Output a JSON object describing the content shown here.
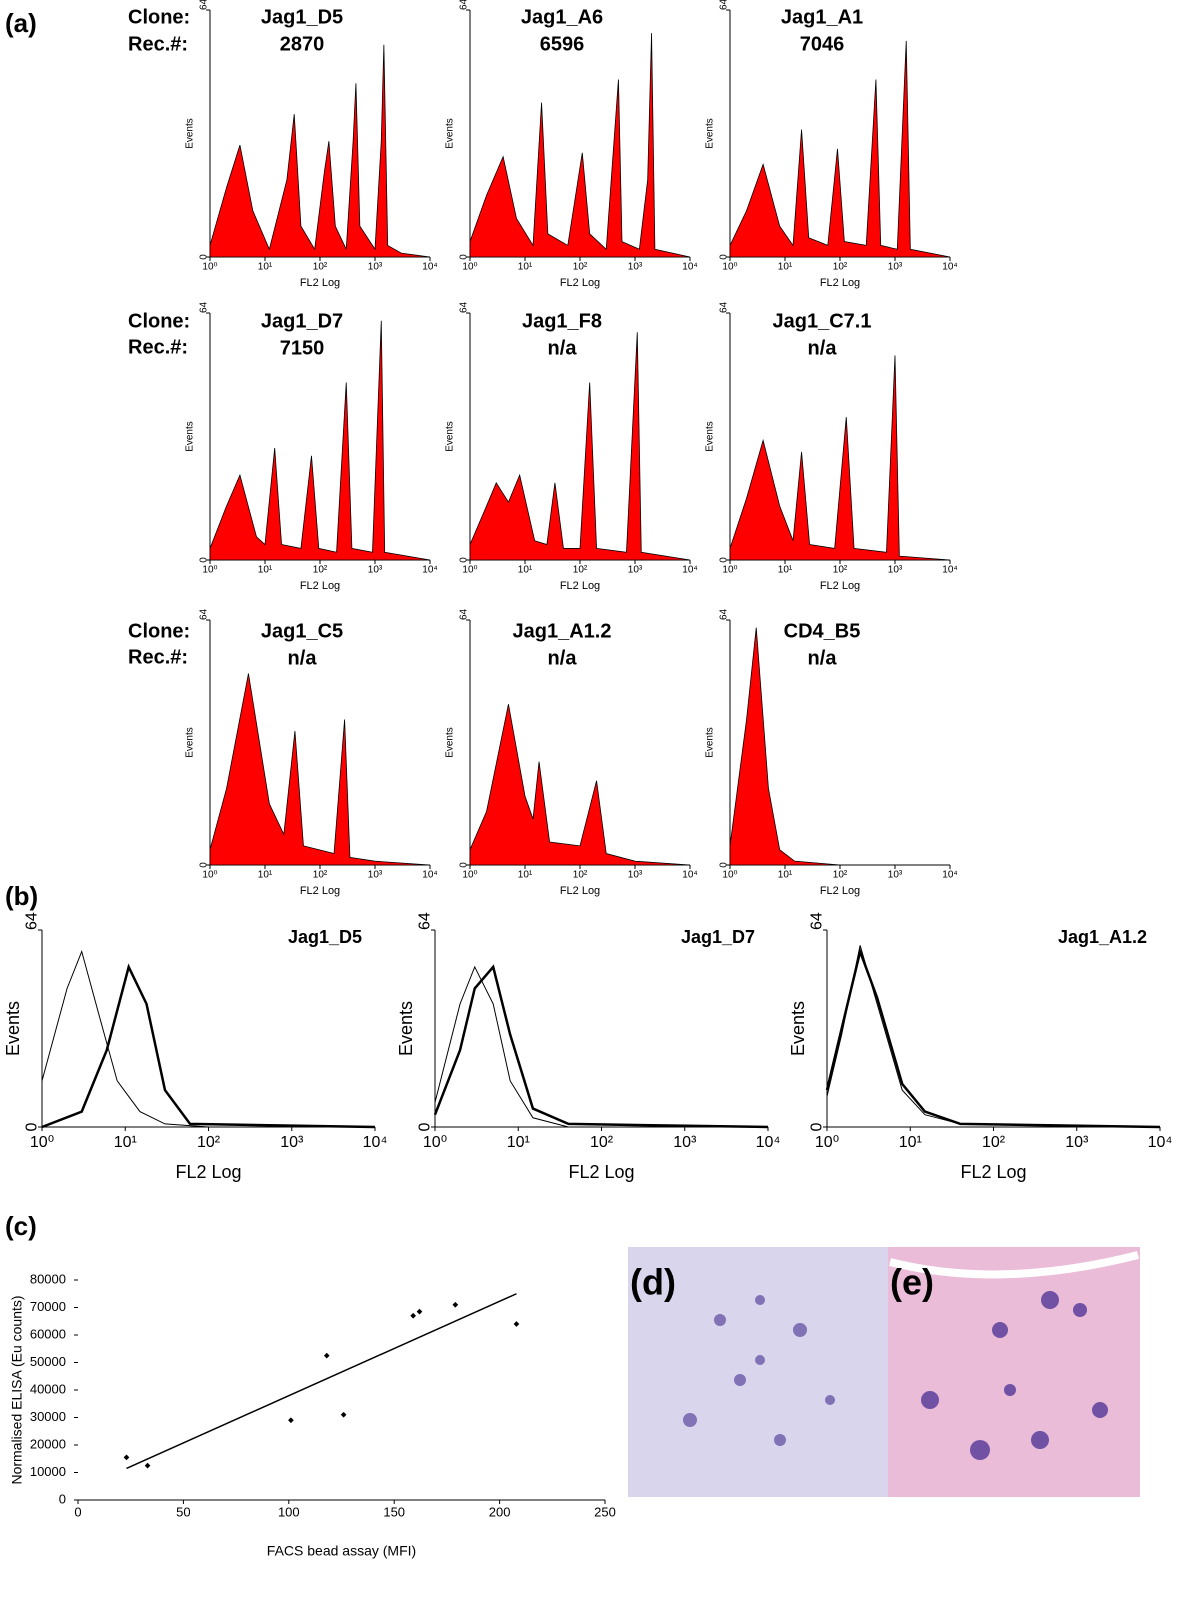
{
  "figure": {
    "panel_labels": [
      "(a)",
      "(b)",
      "(c)",
      "(d)",
      "(e)"
    ],
    "row_labels": [
      {
        "clone": "Clone:",
        "rec": "Rec.#:"
      },
      {
        "clone": "Clone:",
        "rec": "Rec.#:"
      },
      {
        "clone": "Clone:",
        "rec": "Rec.#:"
      }
    ]
  },
  "chart_data": [
    {
      "type": "area",
      "title": "Jag1_D5",
      "subtitle": "2870",
      "color": "#ff0000",
      "log_x": true,
      "x": [
        1,
        2,
        3.5,
        6,
        12,
        25,
        34,
        45,
        80,
        120,
        145,
        190,
        300,
        400,
        450,
        530,
        1000,
        1300,
        1450,
        1700,
        3000,
        10000
      ],
      "values": [
        3,
        18,
        29,
        12,
        2,
        20,
        37,
        8,
        2,
        22,
        30,
        8,
        2,
        30,
        45,
        8,
        2,
        30,
        55,
        3,
        1,
        0
      ],
      "xlim": [
        1,
        10000
      ],
      "xticks": [
        {
          "value": 1,
          "label": "10⁰"
        },
        {
          "value": 10,
          "label": "10¹"
        },
        {
          "value": 100,
          "label": "10²"
        },
        {
          "value": 1000,
          "label": "10³"
        },
        {
          "value": 10000,
          "label": "10⁴"
        }
      ],
      "ylim": [
        0,
        64
      ],
      "yticks": [
        0,
        64
      ],
      "xlabel": "FL2 Log",
      "ylabel": "Events"
    },
    {
      "type": "area",
      "title": "Jag1_A6",
      "subtitle": "6596",
      "color": "#ff0000",
      "log_x": true,
      "x": [
        1,
        2,
        4,
        7,
        14,
        20,
        26,
        60,
        110,
        150,
        300,
        500,
        580,
        1200,
        1700,
        2000,
        2300,
        10000
      ],
      "values": [
        4,
        16,
        26,
        10,
        3,
        40,
        6,
        3,
        27,
        6,
        2,
        46,
        4,
        2,
        20,
        58,
        2,
        0
      ],
      "xlim": [
        1,
        10000
      ],
      "xticks": [
        {
          "value": 1,
          "label": "10⁰"
        },
        {
          "value": 10,
          "label": "10¹"
        },
        {
          "value": 100,
          "label": "10²"
        },
        {
          "value": 1000,
          "label": "10³"
        },
        {
          "value": 10000,
          "label": "10⁴"
        }
      ],
      "ylim": [
        0,
        64
      ],
      "yticks": [
        0,
        64
      ],
      "xlabel": "FL2 Log",
      "ylabel": "Events"
    },
    {
      "type": "area",
      "title": "Jag1_A1",
      "subtitle": "7046",
      "color": "#ff0000",
      "log_x": true,
      "x": [
        1,
        2,
        4,
        8,
        14,
        20,
        27,
        60,
        90,
        120,
        300,
        450,
        550,
        1100,
        1600,
        1900,
        10000
      ],
      "values": [
        3,
        12,
        24,
        8,
        3,
        33,
        5,
        3,
        28,
        4,
        3,
        46,
        3,
        2,
        56,
        2,
        0
      ],
      "xlim": [
        1,
        10000
      ],
      "xticks": [
        {
          "value": 1,
          "label": "10⁰"
        },
        {
          "value": 10,
          "label": "10¹"
        },
        {
          "value": 100,
          "label": "10²"
        },
        {
          "value": 1000,
          "label": "10³"
        },
        {
          "value": 10000,
          "label": "10⁴"
        }
      ],
      "ylim": [
        0,
        64
      ],
      "yticks": [
        0,
        64
      ],
      "xlabel": "FL2 Log",
      "ylabel": "Events"
    },
    {
      "type": "area",
      "title": "Jag1_D7",
      "subtitle": "7150",
      "color": "#ff0000",
      "log_x": true,
      "x": [
        1,
        2,
        3.5,
        7,
        10,
        15,
        20,
        45,
        70,
        95,
        200,
        300,
        380,
        900,
        1300,
        1500,
        10000
      ],
      "values": [
        3,
        14,
        22,
        6,
        4,
        29,
        4,
        3,
        27,
        3,
        2,
        46,
        3,
        2,
        62,
        2,
        0
      ],
      "xlim": [
        1,
        10000
      ],
      "xticks": [
        {
          "value": 1,
          "label": "10⁰"
        },
        {
          "value": 10,
          "label": "10¹"
        },
        {
          "value": 100,
          "label": "10²"
        },
        {
          "value": 1000,
          "label": "10³"
        },
        {
          "value": 10000,
          "label": "10⁴"
        }
      ],
      "ylim": [
        0,
        64
      ],
      "yticks": [
        0,
        64
      ],
      "xlabel": "FL2 Log",
      "ylabel": "Events"
    },
    {
      "type": "area",
      "title": "Jag1_F8",
      "subtitle": "n/a",
      "color": "#ff0000",
      "log_x": true,
      "x": [
        1,
        2,
        3,
        5,
        8,
        15,
        25,
        35,
        50,
        100,
        150,
        200,
        700,
        1100,
        1300,
        10000
      ],
      "values": [
        4,
        14,
        20,
        15,
        22,
        5,
        4,
        20,
        3,
        3,
        46,
        3,
        2,
        59,
        2,
        0
      ],
      "xlim": [
        1,
        10000
      ],
      "xticks": [
        {
          "value": 1,
          "label": "10⁰"
        },
        {
          "value": 10,
          "label": "10¹"
        },
        {
          "value": 100,
          "label": "10²"
        },
        {
          "value": 1000,
          "label": "10³"
        },
        {
          "value": 10000,
          "label": "10⁴"
        }
      ],
      "ylim": [
        0,
        64
      ],
      "yticks": [
        0,
        64
      ],
      "xlabel": "FL2 Log",
      "ylabel": "Events"
    },
    {
      "type": "area",
      "title": "Jag1_C7.1",
      "subtitle": "n/a",
      "color": "#ff0000",
      "log_x": true,
      "x": [
        1,
        2,
        4,
        8,
        14,
        20,
        28,
        80,
        130,
        180,
        700,
        1000,
        1200,
        10000
      ],
      "values": [
        3,
        16,
        31,
        14,
        5,
        28,
        4,
        3,
        37,
        3,
        2,
        53,
        1,
        0
      ],
      "xlim": [
        1,
        10000
      ],
      "xticks": [
        {
          "value": 1,
          "label": "10⁰"
        },
        {
          "value": 10,
          "label": "10¹"
        },
        {
          "value": 100,
          "label": "10²"
        },
        {
          "value": 1000,
          "label": "10³"
        },
        {
          "value": 10000,
          "label": "10⁴"
        }
      ],
      "ylim": [
        0,
        64
      ],
      "yticks": [
        0,
        64
      ],
      "xlabel": "FL2 Log",
      "ylabel": "Events"
    },
    {
      "type": "area",
      "title": "Jag1_C5",
      "subtitle": "n/a",
      "color": "#ff0000",
      "log_x": true,
      "x": [
        1,
        2,
        5,
        12,
        22,
        35,
        50,
        180,
        280,
        350,
        1000,
        10000
      ],
      "values": [
        4,
        20,
        50,
        16,
        8,
        35,
        5,
        3,
        38,
        2,
        1,
        0
      ],
      "xlim": [
        1,
        10000
      ],
      "xticks": [
        {
          "value": 1,
          "label": "10⁰"
        },
        {
          "value": 10,
          "label": "10¹"
        },
        {
          "value": 100,
          "label": "10²"
        },
        {
          "value": 1000,
          "label": "10³"
        },
        {
          "value": 10000,
          "label": "10⁴"
        }
      ],
      "ylim": [
        0,
        64
      ],
      "yticks": [
        0,
        64
      ],
      "xlabel": "FL2 Log",
      "ylabel": "Events"
    },
    {
      "type": "area",
      "title": "Jag1_A1.2",
      "subtitle": "n/a",
      "color": "#ff0000",
      "log_x": true,
      "x": [
        1,
        2,
        5,
        10,
        14,
        18,
        28,
        100,
        200,
        300,
        1000,
        10000
      ],
      "values": [
        4,
        14,
        42,
        18,
        12,
        27,
        6,
        5,
        22,
        3,
        1,
        0
      ],
      "xlim": [
        1,
        10000
      ],
      "xticks": [
        {
          "value": 1,
          "label": "10⁰"
        },
        {
          "value": 10,
          "label": "10¹"
        },
        {
          "value": 100,
          "label": "10²"
        },
        {
          "value": 1000,
          "label": "10³"
        },
        {
          "value": 10000,
          "label": "10⁴"
        }
      ],
      "ylim": [
        0,
        64
      ],
      "yticks": [
        0,
        64
      ],
      "xlabel": "FL2 Log",
      "ylabel": "Events"
    },
    {
      "type": "area",
      "title": "CD4_B5",
      "subtitle": "n/a",
      "color": "#ff0000",
      "log_x": true,
      "x": [
        1,
        2,
        3,
        5,
        8,
        15,
        100,
        10000
      ],
      "values": [
        5,
        38,
        62,
        20,
        4,
        1,
        0,
        0
      ],
      "xlim": [
        1,
        10000
      ],
      "xticks": [
        {
          "value": 1,
          "label": "10⁰"
        },
        {
          "value": 10,
          "label": "10¹"
        },
        {
          "value": 100,
          "label": "10²"
        },
        {
          "value": 1000,
          "label": "10³"
        },
        {
          "value": 10000,
          "label": "10⁴"
        }
      ],
      "ylim": [
        0,
        64
      ],
      "yticks": [
        0,
        64
      ],
      "xlabel": "FL2 Log",
      "ylabel": "Events"
    },
    {
      "type": "line",
      "title": "Jag1_D5",
      "log_x": true,
      "series": [
        {
          "color": "#000000",
          "x": [
            1,
            2,
            3,
            5,
            8,
            15,
            30,
            100,
            10000
          ],
          "values": [
            15,
            45,
            57,
            35,
            15,
            5,
            1,
            0,
            0
          ]
        },
        {
          "color": "#000000",
          "x": [
            1,
            3,
            6,
            11,
            18,
            30,
            60,
            10000
          ],
          "values": [
            0,
            5,
            25,
            52,
            40,
            12,
            1,
            0
          ]
        }
      ],
      "xlim": [
        1,
        10000
      ],
      "xticks": [
        {
          "value": 1,
          "label": "10⁰"
        },
        {
          "value": 10,
          "label": "10¹"
        },
        {
          "value": 100,
          "label": "10²"
        },
        {
          "value": 1000,
          "label": "10³"
        },
        {
          "value": 10000,
          "label": "10⁴"
        }
      ],
      "ylim": [
        0,
        64
      ],
      "yticks": [
        0,
        64
      ],
      "xlabel": "FL2 Log",
      "ylabel": "Events"
    },
    {
      "type": "line",
      "title": "Jag1_D7",
      "log_x": true,
      "series": [
        {
          "color": "#000000",
          "x": [
            1,
            2,
            3,
            5,
            8,
            15,
            40,
            10000
          ],
          "values": [
            8,
            40,
            52,
            40,
            15,
            3,
            0,
            0
          ]
        },
        {
          "color": "#000000",
          "x": [
            1,
            2,
            3,
            5,
            8,
            15,
            40,
            10000
          ],
          "values": [
            4,
            25,
            45,
            52,
            30,
            6,
            1,
            0
          ]
        }
      ],
      "xlim": [
        1,
        10000
      ],
      "xticks": [
        {
          "value": 1,
          "label": "10⁰"
        },
        {
          "value": 10,
          "label": "10¹"
        },
        {
          "value": 100,
          "label": "10²"
        },
        {
          "value": 1000,
          "label": "10³"
        },
        {
          "value": 10000,
          "label": "10⁴"
        }
      ],
      "ylim": [
        0,
        64
      ],
      "yticks": [
        0,
        64
      ],
      "xlabel": "FL2 Log",
      "ylabel": "Events"
    },
    {
      "type": "line",
      "title": "Jag1_A1.2",
      "log_x": true,
      "series": [
        {
          "color": "#000000",
          "x": [
            1,
            1.5,
            2.5,
            4,
            8,
            15,
            40,
            10000
          ],
          "values": [
            10,
            30,
            59,
            40,
            12,
            4,
            1,
            0
          ]
        },
        {
          "color": "#000000",
          "x": [
            1,
            1.5,
            2.5,
            4,
            8,
            15,
            40,
            10000
          ],
          "values": [
            12,
            32,
            57,
            42,
            14,
            5,
            1,
            0
          ]
        }
      ],
      "xlim": [
        1,
        10000
      ],
      "xticks": [
        {
          "value": 1,
          "label": "10⁰"
        },
        {
          "value": 10,
          "label": "10¹"
        },
        {
          "value": 100,
          "label": "10²"
        },
        {
          "value": 1000,
          "label": "10³"
        },
        {
          "value": 10000,
          "label": "10⁴"
        }
      ],
      "ylim": [
        0,
        64
      ],
      "yticks": [
        0,
        64
      ],
      "xlabel": "FL2 Log",
      "ylabel": "Events"
    },
    {
      "type": "scatter",
      "color": "#000000",
      "x": [
        23,
        33,
        101,
        118,
        126,
        159,
        162,
        179,
        208
      ],
      "values": [
        15500,
        12500,
        29000,
        52500,
        31000,
        67000,
        68500,
        71000,
        64000
      ],
      "trendline": {
        "x": [
          23,
          208
        ],
        "values": [
          11500,
          75000
        ]
      },
      "xlim": [
        0,
        250
      ],
      "xticks": [
        0,
        50,
        100,
        150,
        200,
        250
      ],
      "ylim": [
        0,
        80000
      ],
      "yticks": [
        0,
        10000,
        20000,
        30000,
        40000,
        50000,
        60000,
        70000,
        80000
      ],
      "xlabel": "FACS bead assay (MFI)",
      "ylabel": "Normalised ELISA (Eu counts)"
    }
  ]
}
